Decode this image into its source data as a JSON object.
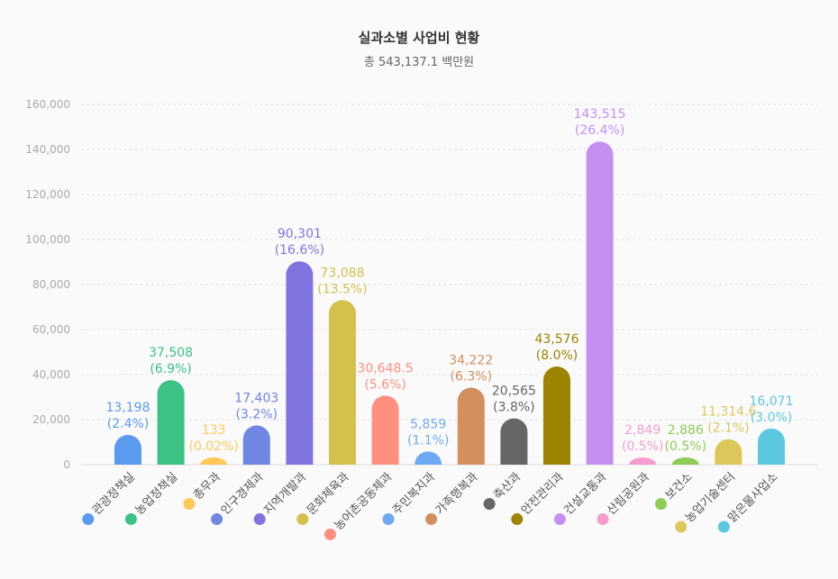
{
  "chart_data": {
    "type": "bar",
    "title": "실과소별 사업비 현황",
    "subtitle": "총 543,137.1 백만원",
    "xlabel": "",
    "ylabel": "",
    "ylim": [
      0,
      160000
    ],
    "yticks": [
      "0",
      "20,000",
      "40,000",
      "60,000",
      "80,000",
      "100,000",
      "120,000",
      "140,000",
      "160,000"
    ],
    "grid": true,
    "legend": "none",
    "categories": [
      "관광정책실",
      "농업정책실",
      "총무과",
      "인구경제과",
      "지역개발과",
      "문화체육과",
      "농어촌공동체과",
      "주민복지과",
      "가족행복과",
      "축산과",
      "안전관리과",
      "건설교통과",
      "산림공원과",
      "보건소",
      "농업기술센터",
      "맑은물사업소"
    ],
    "values": [
      13198,
      37508,
      133,
      17403,
      90301,
      73088,
      30648.5,
      5859,
      34222,
      20565,
      43576,
      143515,
      2849,
      2886,
      11314.6,
      16071
    ],
    "value_labels": [
      "13,198",
      "37,508",
      "133",
      "17,403",
      "90,301",
      "73,088",
      "30,648.5",
      "5,859",
      "34,222",
      "20,565",
      "43,576",
      "143,515",
      "2,849",
      "2,886",
      "11,314.6",
      "16,071"
    ],
    "percent_labels": [
      "(2.4%)",
      "(6.9%)",
      "(0.02%)",
      "(3.2%)",
      "(16.6%)",
      "(13.5%)",
      "(5.6%)",
      "(1.1%)",
      "(6.3%)",
      "(3.8%)",
      "(8.0%)",
      "(26.4%)",
      "(0.5%)",
      "(0.5%)",
      "(2.1%)",
      "(3.0%)"
    ],
    "colors": [
      "#5a9bf0",
      "#3cc285",
      "#ffc857",
      "#6f86e3",
      "#8075e0",
      "#d4c04d",
      "#ff9080",
      "#6eaaf2",
      "#d48f5f",
      "#666666",
      "#9c8400",
      "#c58ff2",
      "#f59ccf",
      "#90cc55",
      "#dcc85a",
      "#5cc8e0"
    ]
  }
}
